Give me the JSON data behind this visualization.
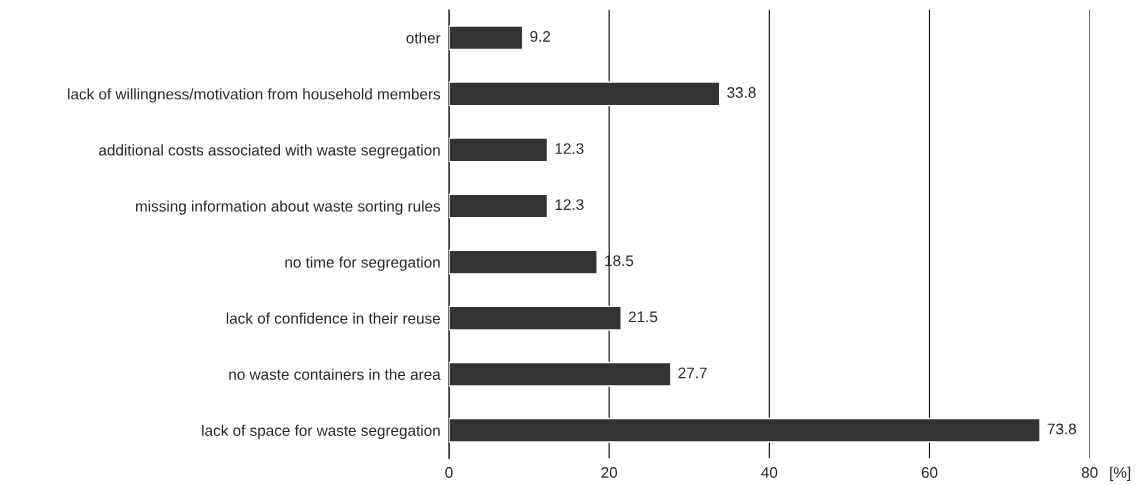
{
  "chart_data": {
    "type": "bar",
    "orientation": "horizontal",
    "categories": [
      "other",
      "lack of willingness/motivation from household members",
      "additional costs associated with waste segregation",
      "missing information about waste sorting rules",
      "no time for segregation",
      "lack of confidence in their reuse",
      "no waste containers in the area",
      "lack of space for waste segregation"
    ],
    "values": [
      9.2,
      33.8,
      12.3,
      12.3,
      18.5,
      21.5,
      27.7,
      73.8
    ],
    "color": "#333333",
    "xlabel": "[%]",
    "xlim": [
      0,
      80
    ],
    "xticks": [
      0,
      20,
      40,
      60,
      80
    ],
    "grid": "x",
    "data_labels": true,
    "legend": false
  }
}
